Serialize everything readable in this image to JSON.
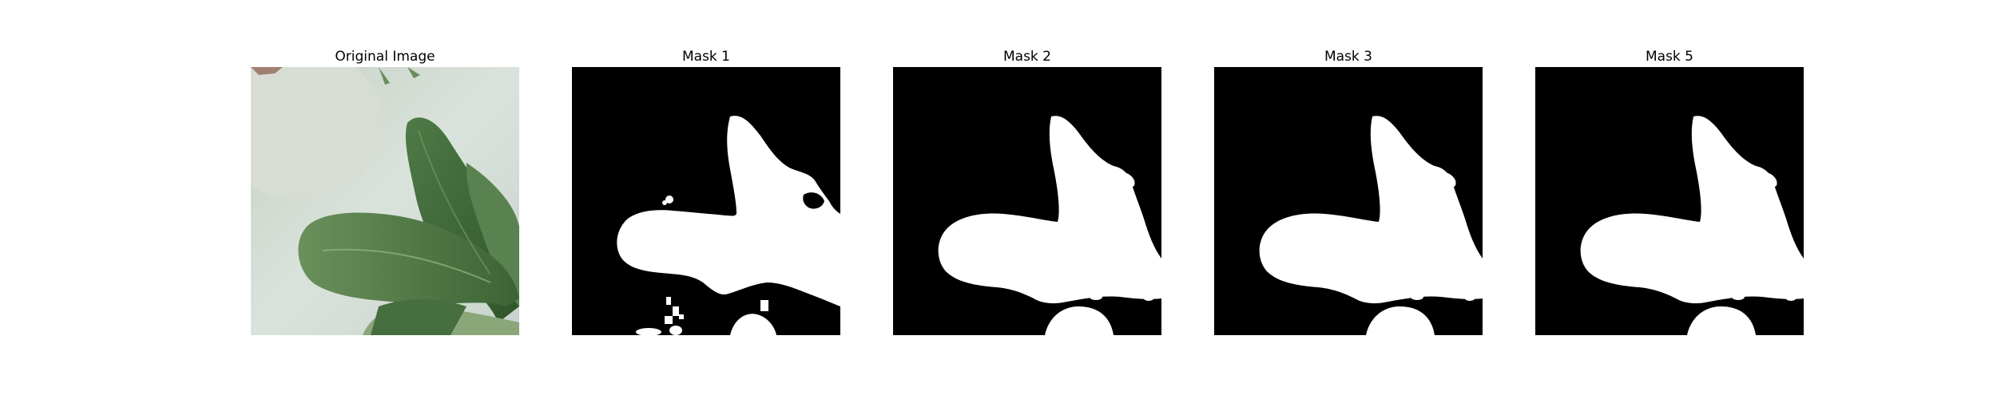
{
  "figure": {
    "panels": [
      {
        "title": "Original Image",
        "kind": "photo"
      },
      {
        "title": "Mask 1",
        "kind": "mask"
      },
      {
        "title": "Mask 2",
        "kind": "mask"
      },
      {
        "title": "Mask 3",
        "kind": "mask"
      },
      {
        "title": "Mask 5",
        "kind": "mask"
      }
    ]
  },
  "colors": {
    "background": "#ffffff",
    "mask_background": "#000000",
    "mask_foreground": "#ffffff",
    "photo_wall": "#cfd9cf",
    "photo_leaf_dark": "#3f6a3a",
    "photo_leaf_light": "#6d9461"
  }
}
